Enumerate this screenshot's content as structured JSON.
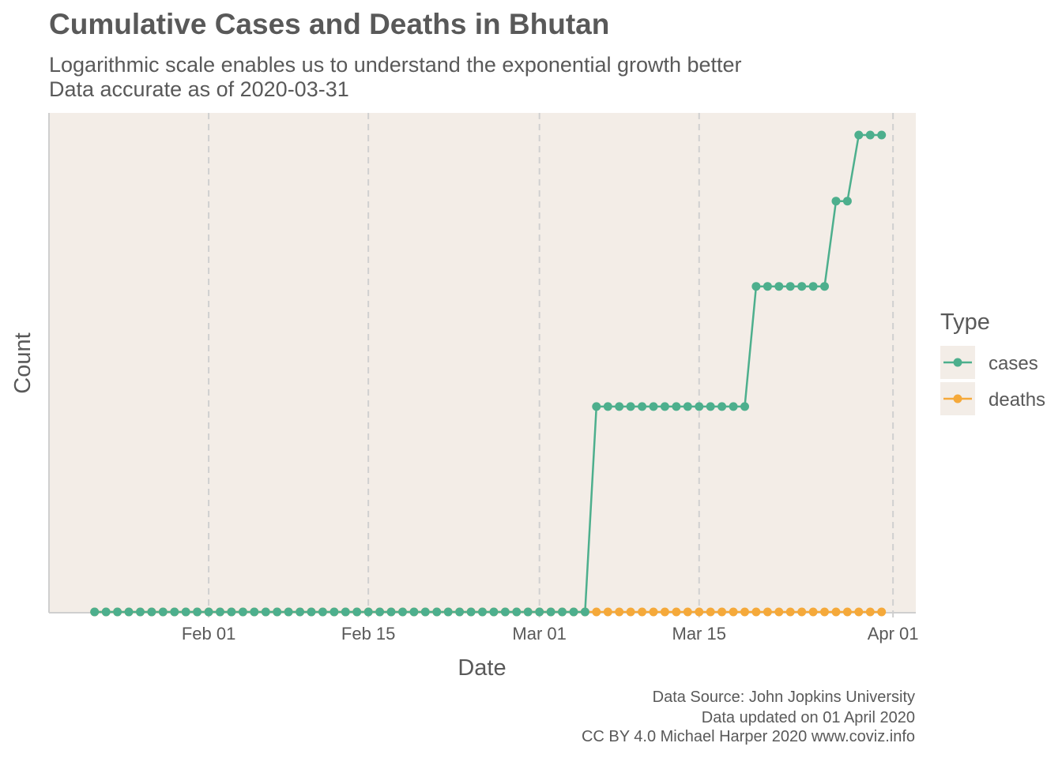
{
  "title": "Cumulative Cases and Deaths in Bhutan",
  "subtitle_line1": "Logarithmic scale enables us to understand the exponential growth better",
  "subtitle_line2": "Data accurate as of 2020-03-31",
  "caption_line1": "Data Source: John Jopkins University",
  "caption_line2": "Data updated on 01 April 2020",
  "caption_line3": "CC BY 4.0 Michael Harper 2020 www.coviz.info",
  "legend": {
    "title": "Type",
    "items": [
      {
        "label": "cases",
        "color": "#4daf8d"
      },
      {
        "label": "deaths",
        "color": "#f5a93a"
      }
    ]
  },
  "colors": {
    "panel_background": "#f3ede7",
    "grid": "#d0d0d0",
    "axis": "#cfcfcf",
    "text": "#595959"
  },
  "chart_data": {
    "type": "line",
    "title": "Cumulative Cases and Deaths in Bhutan",
    "xlabel": "Date",
    "ylabel": "Count",
    "y_scale": "log",
    "y_tick_labels_shown": false,
    "grid": "vertical dashed major gridlines",
    "legend_position": "right",
    "x_ticks": [
      "2020-02-01",
      "2020-02-15",
      "2020-03-01",
      "2020-03-15",
      "2020-04-01"
    ],
    "x_tick_labels": [
      "Feb 01",
      "Feb 15",
      "Mar 01",
      "Mar 15",
      "Apr 01"
    ],
    "xlim": [
      "2020-01-18",
      "2020-04-03"
    ],
    "ylim": [
      0,
      6
    ],
    "dates": [
      "2020-01-22",
      "2020-01-23",
      "2020-01-24",
      "2020-01-25",
      "2020-01-26",
      "2020-01-27",
      "2020-01-28",
      "2020-01-29",
      "2020-01-30",
      "2020-01-31",
      "2020-02-01",
      "2020-02-02",
      "2020-02-03",
      "2020-02-04",
      "2020-02-05",
      "2020-02-06",
      "2020-02-07",
      "2020-02-08",
      "2020-02-09",
      "2020-02-10",
      "2020-02-11",
      "2020-02-12",
      "2020-02-13",
      "2020-02-14",
      "2020-02-15",
      "2020-02-16",
      "2020-02-17",
      "2020-02-18",
      "2020-02-19",
      "2020-02-20",
      "2020-02-21",
      "2020-02-22",
      "2020-02-23",
      "2020-02-24",
      "2020-02-25",
      "2020-02-26",
      "2020-02-27",
      "2020-02-28",
      "2020-02-29",
      "2020-03-01",
      "2020-03-02",
      "2020-03-03",
      "2020-03-04",
      "2020-03-05",
      "2020-03-06",
      "2020-03-07",
      "2020-03-08",
      "2020-03-09",
      "2020-03-10",
      "2020-03-11",
      "2020-03-12",
      "2020-03-13",
      "2020-03-14",
      "2020-03-15",
      "2020-03-16",
      "2020-03-17",
      "2020-03-18",
      "2020-03-19",
      "2020-03-20",
      "2020-03-21",
      "2020-03-22",
      "2020-03-23",
      "2020-03-24",
      "2020-03-25",
      "2020-03-26",
      "2020-03-27",
      "2020-03-28",
      "2020-03-29",
      "2020-03-30",
      "2020-03-31"
    ],
    "series": [
      {
        "name": "cases",
        "color": "#4daf8d",
        "values": [
          0,
          0,
          0,
          0,
          0,
          0,
          0,
          0,
          0,
          0,
          0,
          0,
          0,
          0,
          0,
          0,
          0,
          0,
          0,
          0,
          0,
          0,
          0,
          0,
          0,
          0,
          0,
          0,
          0,
          0,
          0,
          0,
          0,
          0,
          0,
          0,
          0,
          0,
          0,
          0,
          0,
          0,
          0,
          0,
          1,
          1,
          1,
          1,
          1,
          1,
          1,
          1,
          1,
          1,
          1,
          1,
          1,
          1,
          2,
          2,
          2,
          2,
          2,
          2,
          2,
          3,
          3,
          4,
          4,
          4
        ]
      },
      {
        "name": "deaths",
        "color": "#f5a93a",
        "values": [
          0,
          0,
          0,
          0,
          0,
          0,
          0,
          0,
          0,
          0,
          0,
          0,
          0,
          0,
          0,
          0,
          0,
          0,
          0,
          0,
          0,
          0,
          0,
          0,
          0,
          0,
          0,
          0,
          0,
          0,
          0,
          0,
          0,
          0,
          0,
          0,
          0,
          0,
          0,
          0,
          0,
          0,
          0,
          0,
          0,
          0,
          0,
          0,
          0,
          0,
          0,
          0,
          0,
          0,
          0,
          0,
          0,
          0,
          0,
          0,
          0,
          0,
          0,
          0,
          0,
          0,
          0,
          0,
          0,
          0
        ]
      }
    ]
  }
}
